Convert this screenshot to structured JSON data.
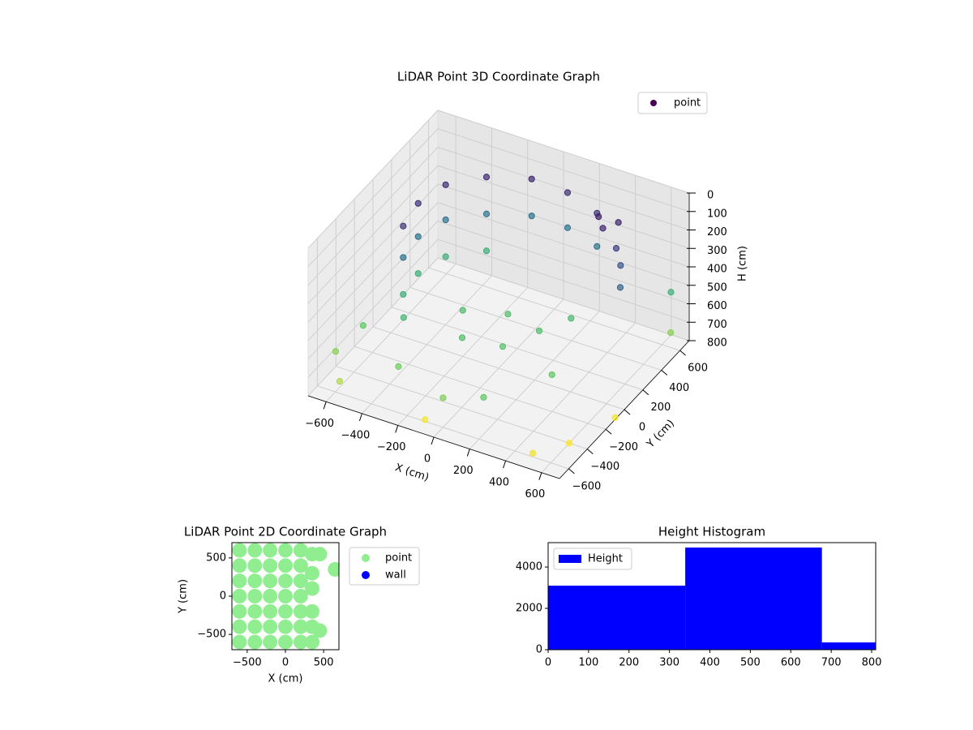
{
  "chart_data": [
    {
      "type": "scatter3d",
      "title": "LiDAR Point 3D Coordinate Graph",
      "xlabel": "X (cm)",
      "ylabel": "Y (cm)",
      "zlabel": "H (cm)",
      "xlim": [
        -700,
        700
      ],
      "ylim": [
        -700,
        700
      ],
      "zlim": [
        800,
        0
      ],
      "xticks": [
        {
          "value": -600,
          "label": "−600"
        },
        {
          "value": -400,
          "label": "−400"
        },
        {
          "value": -200,
          "label": "−200"
        },
        0,
        200,
        400,
        600
      ],
      "yticks": [
        {
          "value": -600,
          "label": "−600"
        },
        {
          "value": -400,
          "label": "−400"
        },
        {
          "value": -200,
          "label": "−200"
        },
        0,
        200,
        400,
        600
      ],
      "zticks": [
        0,
        100,
        200,
        300,
        400,
        500,
        600,
        700,
        800
      ],
      "grid": true,
      "legend": "upper right",
      "colormap": "viridis",
      "series": [
        {
          "name": "point",
          "x": [
            -500,
            -450,
            -300,
            -100,
            100,
            300,
            -480,
            -500,
            -450,
            -300,
            -100,
            100,
            300,
            -480,
            -500,
            -450,
            -300,
            -480,
            -400,
            350,
            400,
            450,
            500,
            550,
            600,
            -200,
            0,
            200,
            100,
            -100,
            300,
            -600,
            -650,
            -300,
            0,
            200,
            -550,
            400,
            650,
            700,
            600,
            -100,
            700,
            500
          ],
          "y": [
            100,
            300,
            450,
            550,
            550,
            480,
            -100,
            100,
            300,
            450,
            550,
            550,
            480,
            -100,
            100,
            300,
            450,
            -100,
            -250,
            400,
            350,
            420,
            300,
            250,
            150,
            0,
            100,
            50,
            -150,
            -200,
            200,
            -300,
            -500,
            -500,
            -600,
            -550,
            -650,
            -200,
            600,
            500,
            -400,
            -600,
            -100,
            -600
          ],
          "h": [
            120,
            110,
            100,
            100,
            110,
            120,
            130,
            300,
            300,
            300,
            300,
            300,
            300,
            300,
            500,
            500,
            500,
            500,
            520,
            80,
            100,
            90,
            150,
            200,
            250,
            550,
            560,
            560,
            570,
            560,
            540,
            600,
            650,
            620,
            640,
            600,
            700,
            600,
            500,
            650,
            800,
            790,
            790,
            780
          ]
        }
      ]
    },
    {
      "type": "scatter",
      "title": "LiDAR Point 2D Coordinate Graph",
      "xlabel": "X (cm)",
      "ylabel": "Y (cm)",
      "xlim": [
        -700,
        700
      ],
      "ylim": [
        -700,
        700
      ],
      "xticks": [
        {
          "value": -500,
          "label": "−500"
        },
        0,
        500
      ],
      "yticks": [
        {
          "value": -500,
          "label": "−500"
        },
        0,
        500
      ],
      "legend": "outside right",
      "series": [
        {
          "name": "point",
          "color": "#90ee90",
          "x": [
            -600,
            -600,
            -600,
            -600,
            -600,
            -600,
            -600,
            -400,
            -400,
            -400,
            -400,
            -400,
            -400,
            -400,
            -200,
            -200,
            -200,
            -200,
            -200,
            -200,
            -200,
            0,
            0,
            0,
            0,
            0,
            0,
            0,
            200,
            200,
            200,
            200,
            200,
            200,
            200,
            350,
            350,
            350,
            350,
            350,
            350,
            450,
            450,
            650
          ],
          "y": [
            -600,
            -400,
            -200,
            0,
            200,
            400,
            600,
            -600,
            -400,
            -200,
            0,
            200,
            400,
            600,
            -600,
            -400,
            -200,
            0,
            200,
            400,
            600,
            -600,
            -400,
            -200,
            0,
            200,
            400,
            600,
            -600,
            -400,
            -200,
            0,
            200,
            400,
            600,
            -600,
            -400,
            -200,
            100,
            300,
            550,
            -450,
            550,
            350
          ]
        },
        {
          "name": "wall",
          "color": "#0000ff",
          "x": [],
          "y": []
        }
      ]
    },
    {
      "type": "histogram",
      "title": "Height Histogram",
      "name": "Height",
      "color": "#0000ff",
      "legend": "upper left",
      "bins": [
        0,
        339,
        677,
        810
      ],
      "values": [
        3098,
        4941,
        353
      ],
      "xlim": [
        0,
        810
      ],
      "ylim": [
        0,
        5180
      ],
      "xticks": [
        0,
        100,
        200,
        300,
        400,
        500,
        600,
        700,
        800
      ],
      "yticks": [
        0,
        2000,
        4000
      ]
    }
  ]
}
